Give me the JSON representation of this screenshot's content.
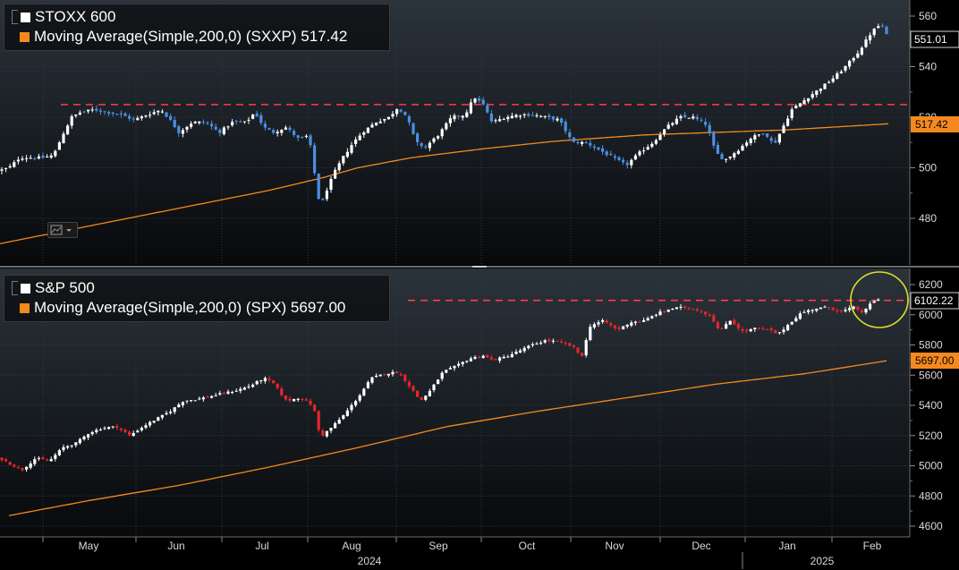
{
  "chart_data": [
    {
      "type": "candlestick",
      "panel": "top",
      "legend": [
        {
          "label": "STOXX 600",
          "color": "#ffffff"
        },
        {
          "label": "Moving Average(Simple,200,0) (SXXP) 517.42",
          "color": "#f5891f"
        }
      ],
      "ylim": [
        465,
        565
      ],
      "yticks": [
        "480",
        "500",
        "520",
        "540",
        "560"
      ],
      "last_price_label": "551.01",
      "ma_label": "517.42",
      "resistance_level": 525,
      "up_color": "#ffffff",
      "down_color": "#4a90e2",
      "ma_color": "#f5891f",
      "resistance_color": "#ff3b4f",
      "close_anchors": [
        [
          0,
          499
        ],
        [
          10,
          500
        ],
        [
          22,
          504
        ],
        [
          35,
          504
        ],
        [
          48,
          504
        ],
        [
          60,
          505
        ],
        [
          70,
          513
        ],
        [
          80,
          520
        ],
        [
          90,
          522
        ],
        [
          105,
          523
        ],
        [
          120,
          522
        ],
        [
          135,
          521
        ],
        [
          150,
          519
        ],
        [
          165,
          521
        ],
        [
          180,
          523
        ],
        [
          190,
          519
        ],
        [
          200,
          514
        ],
        [
          215,
          518
        ],
        [
          230,
          518
        ],
        [
          245,
          514
        ],
        [
          260,
          518
        ],
        [
          275,
          518
        ],
        [
          285,
          522
        ],
        [
          295,
          516
        ],
        [
          305,
          514
        ],
        [
          320,
          516
        ],
        [
          335,
          511
        ],
        [
          345,
          513
        ],
        [
          352,
          497
        ],
        [
          358,
          484
        ],
        [
          366,
          492
        ],
        [
          375,
          499
        ],
        [
          385,
          505
        ],
        [
          395,
          510
        ],
        [
          405,
          514
        ],
        [
          420,
          518
        ],
        [
          435,
          520
        ],
        [
          445,
          524
        ],
        [
          455,
          520
        ],
        [
          465,
          510
        ],
        [
          475,
          508
        ],
        [
          490,
          513
        ],
        [
          505,
          520
        ],
        [
          520,
          521
        ],
        [
          530,
          528
        ],
        [
          540,
          525
        ],
        [
          550,
          518
        ],
        [
          565,
          520
        ],
        [
          580,
          521
        ],
        [
          595,
          521
        ],
        [
          610,
          520
        ],
        [
          625,
          519
        ],
        [
          640,
          510
        ],
        [
          655,
          510
        ],
        [
          670,
          507
        ],
        [
          685,
          504
        ],
        [
          700,
          501
        ],
        [
          715,
          506
        ],
        [
          730,
          510
        ],
        [
          745,
          516
        ],
        [
          760,
          520
        ],
        [
          775,
          520
        ],
        [
          790,
          517
        ],
        [
          800,
          506
        ],
        [
          810,
          503
        ],
        [
          825,
          507
        ],
        [
          840,
          512
        ],
        [
          855,
          514
        ],
        [
          865,
          509
        ],
        [
          875,
          516
        ],
        [
          885,
          523
        ],
        [
          900,
          527
        ],
        [
          915,
          531
        ],
        [
          930,
          535
        ],
        [
          945,
          540
        ],
        [
          960,
          546
        ],
        [
          975,
          554
        ],
        [
          985,
          557
        ],
        [
          993,
          551
        ]
      ],
      "ma_anchors": [
        [
          0,
          470
        ],
        [
          100,
          477
        ],
        [
          200,
          484
        ],
        [
          300,
          491
        ],
        [
          360,
          496
        ],
        [
          400,
          500
        ],
        [
          460,
          504
        ],
        [
          540,
          507.5
        ],
        [
          620,
          510.5
        ],
        [
          720,
          513
        ],
        [
          800,
          514
        ],
        [
          880,
          515
        ],
        [
          993,
          517.4
        ]
      ]
    },
    {
      "type": "candlestick",
      "panel": "bottom",
      "legend": [
        {
          "label": "S&P 500",
          "color": "#ffffff"
        },
        {
          "label": "Moving Average(Simple,200,0) (SPX) 5697.00",
          "color": "#f5891f"
        }
      ],
      "ylim": [
        4550,
        6250
      ],
      "yticks": [
        "4600",
        "4800",
        "5000",
        "5200",
        "5400",
        "5600",
        "5800",
        "6000",
        "6200"
      ],
      "last_price_label": "6102.22",
      "ma_label": "5697.00",
      "resistance_level": 6095,
      "up_color": "#ffffff",
      "down_color": "#e8242c",
      "ma_color": "#f5891f",
      "resistance_color": "#ff3b4f",
      "close_anchors": [
        [
          0,
          5050
        ],
        [
          15,
          5000
        ],
        [
          25,
          4975
        ],
        [
          40,
          5050
        ],
        [
          55,
          5030
        ],
        [
          70,
          5120
        ],
        [
          85,
          5150
        ],
        [
          100,
          5220
        ],
        [
          115,
          5250
        ],
        [
          130,
          5260
        ],
        [
          145,
          5200
        ],
        [
          160,
          5260
        ],
        [
          175,
          5310
        ],
        [
          190,
          5360
        ],
        [
          205,
          5430
        ],
        [
          220,
          5440
        ],
        [
          235,
          5460
        ],
        [
          250,
          5480
        ],
        [
          265,
          5500
        ],
        [
          280,
          5530
        ],
        [
          295,
          5580
        ],
        [
          305,
          5550
        ],
        [
          320,
          5430
        ],
        [
          335,
          5450
        ],
        [
          350,
          5400
        ],
        [
          358,
          5190
        ],
        [
          370,
          5250
        ],
        [
          385,
          5340
        ],
        [
          400,
          5450
        ],
        [
          415,
          5580
        ],
        [
          430,
          5610
        ],
        [
          445,
          5620
        ],
        [
          455,
          5550
        ],
        [
          470,
          5430
        ],
        [
          480,
          5490
        ],
        [
          495,
          5620
        ],
        [
          510,
          5660
        ],
        [
          525,
          5710
        ],
        [
          540,
          5730
        ],
        [
          550,
          5700
        ],
        [
          565,
          5720
        ],
        [
          580,
          5760
        ],
        [
          595,
          5800
        ],
        [
          610,
          5830
        ],
        [
          625,
          5820
        ],
        [
          640,
          5790
        ],
        [
          650,
          5720
        ],
        [
          660,
          5930
        ],
        [
          675,
          5960
        ],
        [
          690,
          5900
        ],
        [
          705,
          5950
        ],
        [
          720,
          5960
        ],
        [
          735,
          6010
        ],
        [
          750,
          6040
        ],
        [
          765,
          6050
        ],
        [
          780,
          6030
        ],
        [
          795,
          5990
        ],
        [
          805,
          5880
        ],
        [
          815,
          5970
        ],
        [
          830,
          5890
        ],
        [
          845,
          5910
        ],
        [
          860,
          5900
        ],
        [
          870,
          5870
        ],
        [
          880,
          5930
        ],
        [
          895,
          6010
        ],
        [
          910,
          6040
        ],
        [
          925,
          6050
        ],
        [
          940,
          6020
        ],
        [
          955,
          6050
        ],
        [
          965,
          6010
        ],
        [
          975,
          6090
        ],
        [
          985,
          6102
        ]
      ],
      "ma_anchors": [
        [
          10,
          4670
        ],
        [
          100,
          4770
        ],
        [
          200,
          4870
        ],
        [
          300,
          4990
        ],
        [
          400,
          5120
        ],
        [
          500,
          5260
        ],
        [
          600,
          5360
        ],
        [
          700,
          5450
        ],
        [
          800,
          5540
        ],
        [
          900,
          5610
        ],
        [
          993,
          5697
        ]
      ]
    }
  ],
  "x_axis": {
    "months": [
      "May",
      "Jun",
      "Jul",
      "Aug",
      "Sep",
      "Oct",
      "Nov",
      "Dec",
      "Jan",
      "Feb"
    ],
    "years": [
      "2024",
      "2025"
    ]
  }
}
